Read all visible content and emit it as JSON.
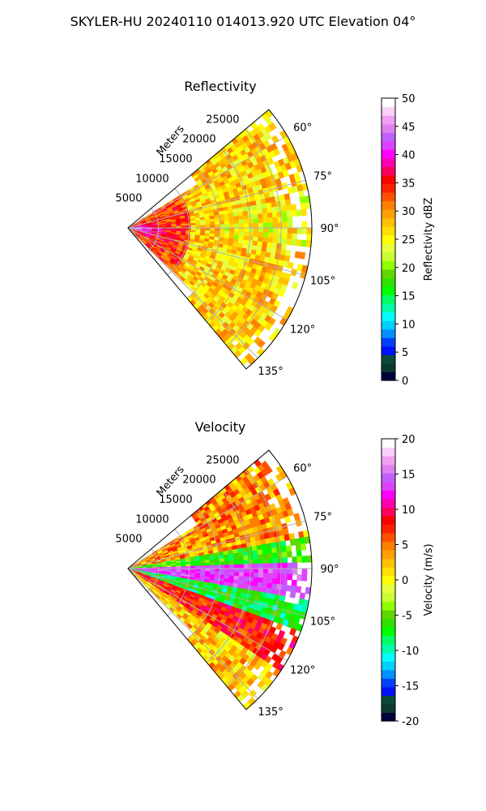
{
  "figure": {
    "title": "SKYLER-HU  20240110  014013.920 UTC Elevation 04°"
  },
  "chart_data": [
    {
      "type": "heatmap",
      "projection": "polar-sector",
      "title": "Reflectivity",
      "radial_label": "Meters",
      "radial_ticks": [
        5000,
        10000,
        15000,
        20000,
        25000
      ],
      "radial_max": 30000,
      "azimuth_range": [
        50,
        140
      ],
      "azimuth_ticks": [
        "60°",
        "75°",
        "90°",
        "105°",
        "120°",
        "135°"
      ],
      "azimuth_tick_values": [
        60,
        75,
        90,
        105,
        120,
        135
      ],
      "grid": true,
      "colorbar": {
        "label": "Reflectivity dBZ",
        "min": 0,
        "max": 50,
        "ticks": [
          0,
          5,
          10,
          15,
          20,
          25,
          30,
          35,
          40,
          45,
          50
        ],
        "colors": [
          "#00003b",
          "#0a3a30",
          "#0b4a3a",
          "#0010ff",
          "#0040ff",
          "#0090ff",
          "#00d0ff",
          "#00ffff",
          "#00ffaa",
          "#00ff66",
          "#00ff00",
          "#30e000",
          "#60d800",
          "#90ff00",
          "#c8ff30",
          "#e6ff40",
          "#ffff00",
          "#ffe000",
          "#ffc000",
          "#ffa000",
          "#ff8000",
          "#ff5000",
          "#ff2000",
          "#ff0000",
          "#ff0060",
          "#ff00b0",
          "#ff00ff",
          "#e040ff",
          "#c060ff",
          "#e080f0",
          "#f0a0f0",
          "#f8d0f8",
          "#ffffff"
        ]
      }
    },
    {
      "type": "heatmap",
      "projection": "polar-sector",
      "title": "Velocity",
      "radial_label": "Meters",
      "radial_ticks": [
        5000,
        10000,
        15000,
        20000,
        25000
      ],
      "radial_max": 30000,
      "azimuth_range": [
        50,
        140
      ],
      "azimuth_ticks": [
        "60°",
        "75°",
        "90°",
        "105°",
        "120°",
        "135°"
      ],
      "azimuth_tick_values": [
        60,
        75,
        90,
        105,
        120,
        135
      ],
      "grid": true,
      "colorbar": {
        "label": "Velocity (m/s)",
        "min": -20,
        "max": 20,
        "ticks": [
          -20,
          -15,
          -10,
          -5,
          0,
          5,
          10,
          15,
          20
        ],
        "colors": [
          "#00003b",
          "#0a3a30",
          "#0b4a3a",
          "#0010ff",
          "#0040ff",
          "#0090ff",
          "#00d0ff",
          "#00ffff",
          "#00ffaa",
          "#00ff66",
          "#00ff00",
          "#30e000",
          "#60d800",
          "#90ff00",
          "#c8ff30",
          "#e6ff40",
          "#ffff00",
          "#ffe000",
          "#ffc000",
          "#ffa000",
          "#ff8000",
          "#ff5000",
          "#ff2000",
          "#ff0000",
          "#ff0060",
          "#ff00b0",
          "#ff00ff",
          "#e040ff",
          "#c060ff",
          "#e080f0",
          "#f0a0f0",
          "#f8d0f8",
          "#ffffff"
        ]
      }
    }
  ]
}
